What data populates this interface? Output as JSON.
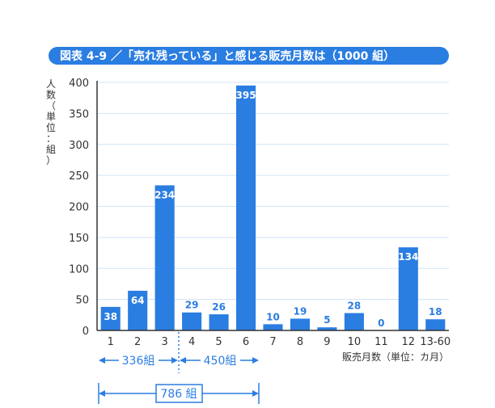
{
  "chart_data": {
    "type": "bar",
    "title": "図表 4-9 ／「売れ残っている」と感じる販売月数は（1000 組）",
    "ylabel": [
      "人",
      "数",
      "（",
      "単",
      "位",
      "：",
      "組",
      "）"
    ],
    "xlabel": "販売月数（単位：カ月）",
    "categories": [
      "1",
      "2",
      "3",
      "4",
      "5",
      "6",
      "7",
      "8",
      "9",
      "10",
      "11",
      "12",
      "13-60"
    ],
    "values": [
      38,
      64,
      234,
      29,
      26,
      395,
      10,
      19,
      5,
      28,
      0,
      134,
      18
    ],
    "ylim": [
      0,
      400
    ],
    "yticks": [
      "0",
      "50",
      "100",
      "150",
      "200",
      "250",
      "300",
      "350",
      "400"
    ],
    "grid": true,
    "annotations": {
      "group1": "336組",
      "group2": "450組",
      "total": "786 組"
    },
    "colors": {
      "bar": "#2a7de1",
      "title_bg": "#2a7de1",
      "grid": "#cfe3f6",
      "axis": "#333333"
    }
  }
}
